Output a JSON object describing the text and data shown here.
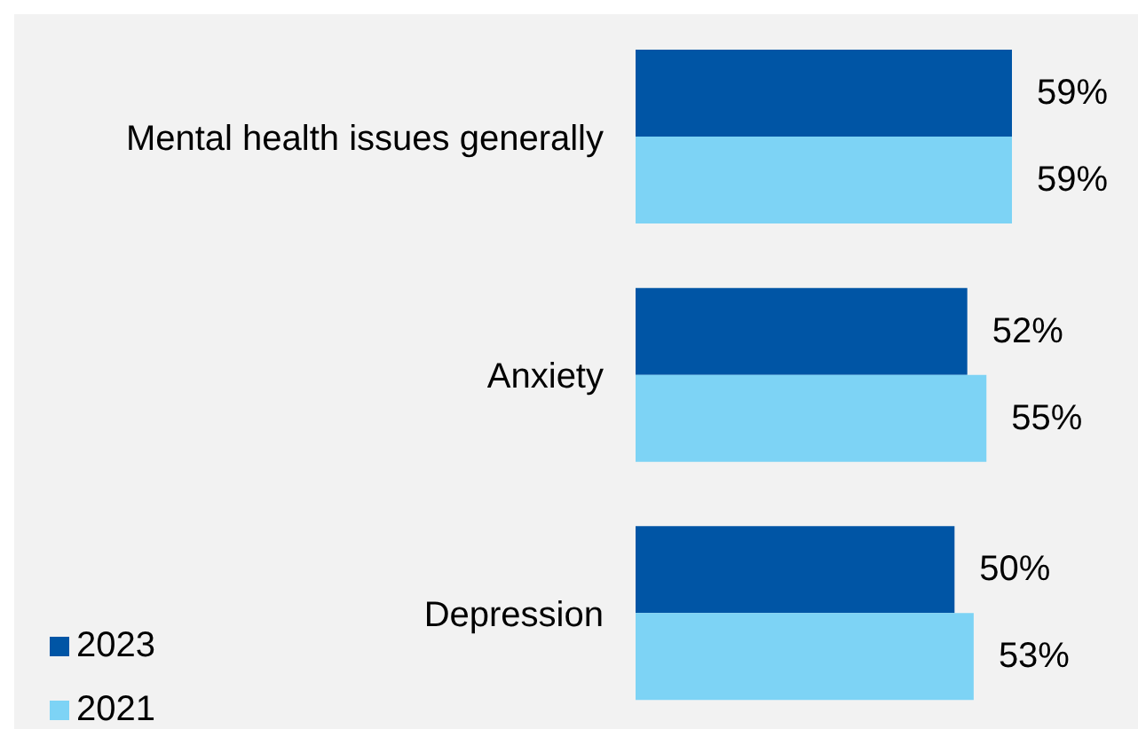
{
  "chart_data": {
    "type": "bar",
    "orientation": "horizontal",
    "categories": [
      "Mental health issues generally",
      "Anxiety",
      "Depression"
    ],
    "series": [
      {
        "name": "2023",
        "color": "#0055a5",
        "values": [
          59,
          52,
          50
        ],
        "value_labels": [
          "59%",
          "52%",
          "50%"
        ]
      },
      {
        "name": "2021",
        "color": "#7dd3f5",
        "values": [
          59,
          55,
          53
        ],
        "value_labels": [
          "59%",
          "55%",
          "53%"
        ]
      }
    ],
    "legend": "bottom left",
    "grid": false
  }
}
